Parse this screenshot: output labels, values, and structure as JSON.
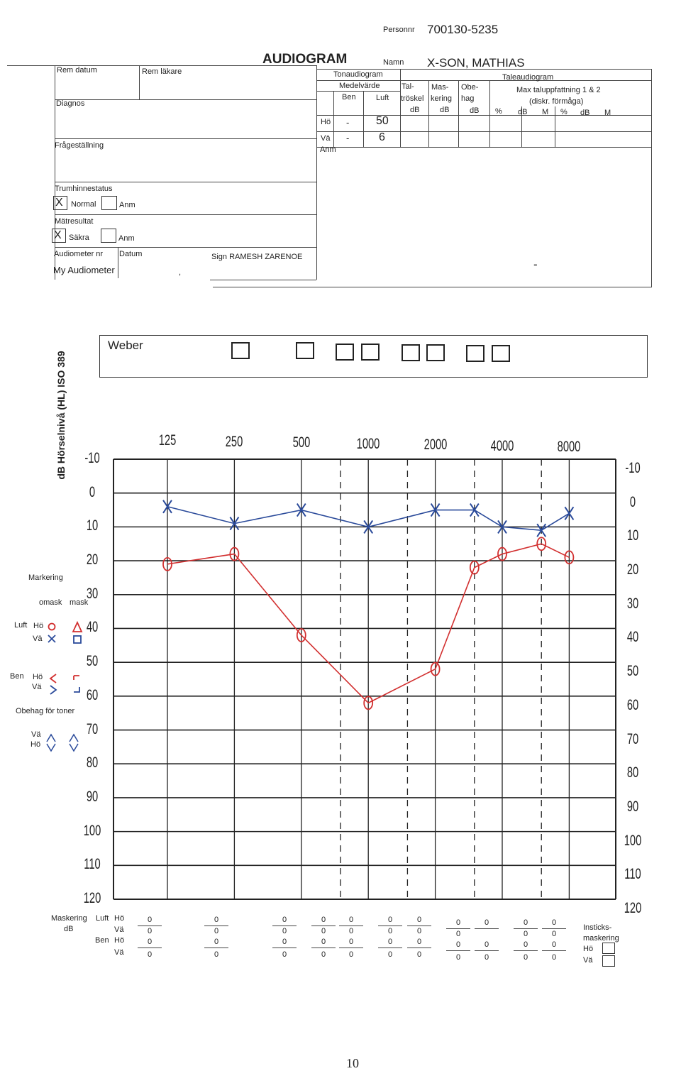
{
  "header": {
    "personnr_label": "Personnr",
    "personnr_value": "700130-5235",
    "title": "AUDIOGRAM",
    "namn_label": "Namn",
    "namn_value": "X-SON, MATHIAS"
  },
  "left_form": {
    "rem_datum": "Rem datum",
    "rem_lakare": "Rem läkare",
    "diagnos": "Diagnos",
    "fragestallning": "Frågeställning",
    "trumhinnestatus": "Trumhinnestatus",
    "trum_mark": "X",
    "normal": "Normal",
    "anm1": "Anm",
    "matresultat": "Mätresultat",
    "mat_mark": "X",
    "sakra": "Säkra",
    "anm2": "Anm",
    "audiometer_nr": "Audiometer nr",
    "datum": "Datum",
    "sign": "Sign RAMESH ZARENOE",
    "audiometer_value": "My Audiometer",
    "datum_value": ",",
    "dash": "-"
  },
  "tone_table": {
    "tonaudiogram": "Tonaudiogram",
    "medelvarde": "Medelvärde",
    "ben": "Ben",
    "luft": "Luft",
    "tal": "Tal-",
    "troskel": "tröskel",
    "troskel_db": "dB",
    "mas": "Mas-",
    "kering": "kering",
    "mas_db": "dB",
    "obe": "Obe-",
    "hag": "hag",
    "obe_db": "dB",
    "taleaudiogram": "Taleaudiogram",
    "max_tal": "Max taluppfattning 1 & 2",
    "diskr": "(diskr. förmåga)",
    "sub_headers": [
      "%",
      "dB",
      "M",
      "%",
      "dB",
      "M"
    ],
    "ho_label": "Hö",
    "ho_ben": "-",
    "ho_luft": "50",
    "va_label": "Vä",
    "va_ben": "-",
    "va_luft": "6",
    "anm": "Anm"
  },
  "weber_label": "Weber",
  "y_axis_title": "dB Hörselnivå (HL) ISO 389",
  "chart_data": {
    "type": "line",
    "x": [
      125,
      250,
      500,
      1000,
      2000,
      4000,
      8000
    ],
    "x_tick_labels": [
      "125",
      "250",
      "500",
      "1000",
      "2000",
      "4000",
      "8000"
    ],
    "ylim": [
      -10,
      120
    ],
    "y_reversed": true,
    "y_ticks": [
      "-10",
      "0",
      "10",
      "20",
      "30",
      "40",
      "50",
      "60",
      "70",
      "80",
      "90",
      "100",
      "110",
      "120"
    ],
    "series": [
      {
        "color": "#2a4a9a",
        "marker": "X",
        "points": [
          {
            "f": 125,
            "db": 4
          },
          {
            "f": 250,
            "db": 9
          },
          {
            "f": 500,
            "db": 5
          },
          {
            "f": 1000,
            "db": 10
          },
          {
            "f": 2000,
            "db": 5
          },
          {
            "f": 3000,
            "db": 5
          },
          {
            "f": 4000,
            "db": 10
          },
          {
            "f": 6000,
            "db": 11
          },
          {
            "f": 8000,
            "db": 6
          }
        ]
      },
      {
        "color": "#d23030",
        "marker": "O",
        "points": [
          {
            "f": 125,
            "db": 21
          },
          {
            "f": 250,
            "db": 18
          },
          {
            "f": 500,
            "db": 42
          },
          {
            "f": 1000,
            "db": 62
          },
          {
            "f": 2000,
            "db": 52
          },
          {
            "f": 3000,
            "db": 22
          },
          {
            "f": 4000,
            "db": 18
          },
          {
            "f": 6000,
            "db": 15
          },
          {
            "f": 8000,
            "db": 19
          }
        ]
      }
    ]
  },
  "legend": {
    "markering": "Markering",
    "omask": "omask",
    "mask": "mask",
    "luft": "Luft",
    "ho": "Hö",
    "va": "Vä",
    "ben": "Ben",
    "ben_ho": "Hö",
    "ben_va": "Vä",
    "obehag": "Obehag för toner",
    "ob_va": "Vä",
    "ob_ho": "Hö"
  },
  "masking": {
    "label1": "Maskering",
    "label2": "dB",
    "luft": "Luft",
    "ben": "Ben",
    "ho": "Hö",
    "va": "Vä",
    "ben_ho": "Hö",
    "ben_va": "Vä",
    "zero": "0",
    "insticks1": "Insticks-",
    "insticks2": "maskering",
    "ins_ho": "Hö",
    "ins_va": "Vä"
  },
  "page_number": "10"
}
